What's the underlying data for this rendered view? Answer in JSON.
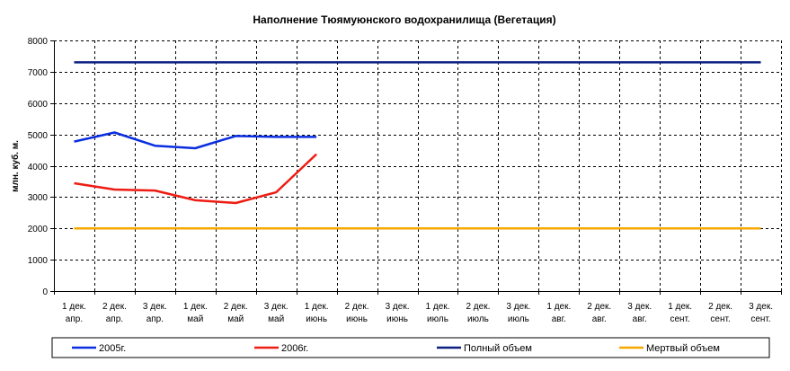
{
  "chart_data": {
    "type": "line",
    "title": "Наполнение Тюямуюнского водохранилища (Вегетация)",
    "xlabel": "",
    "ylabel": "млн. куб. м.",
    "ylim": [
      0,
      8000
    ],
    "yticks": [
      0,
      1000,
      2000,
      3000,
      4000,
      5000,
      6000,
      7000,
      8000
    ],
    "grid": true,
    "legend_position": "bottom",
    "categories": [
      [
        "1 дек.",
        "апр."
      ],
      [
        "2 дек.",
        "апр."
      ],
      [
        "3 дек.",
        "апр."
      ],
      [
        "1 дек.",
        "май"
      ],
      [
        "2 дек.",
        "май"
      ],
      [
        "3 дек.",
        "май"
      ],
      [
        "1 дек.",
        "июнь"
      ],
      [
        "2 дек.",
        "июнь"
      ],
      [
        "3 дек.",
        "июнь"
      ],
      [
        "1 дек.",
        "июль"
      ],
      [
        "2 дек.",
        "июль"
      ],
      [
        "3 дек.",
        "июль"
      ],
      [
        "1 дек.",
        "авг."
      ],
      [
        "2 дек.",
        "авг."
      ],
      [
        "3 дек.",
        "авг."
      ],
      [
        "1 дек.",
        "сент."
      ],
      [
        "2 дек.",
        "сент."
      ],
      [
        "3 дек.",
        "сент."
      ]
    ],
    "series": [
      {
        "name": "2005г.",
        "color": "#0a2ee0",
        "values": [
          4770,
          5060,
          4640,
          4560,
          4950,
          4920,
          4920,
          null,
          null,
          null,
          null,
          null,
          null,
          null,
          null,
          null,
          null,
          null
        ]
      },
      {
        "name": "2006г.",
        "color": "#ee1c12",
        "values": [
          3440,
          3240,
          3210,
          2900,
          2810,
          3150,
          4370,
          null,
          null,
          null,
          null,
          null,
          null,
          null,
          null,
          null,
          null,
          null
        ]
      },
      {
        "name": "Полный объем",
        "color": "#0b1f80",
        "values": [
          7300,
          7300,
          7300,
          7300,
          7300,
          7300,
          7300,
          7300,
          7300,
          7300,
          7300,
          7300,
          7300,
          7300,
          7300,
          7300,
          7300,
          7300
        ]
      },
      {
        "name": "Мертвый объем",
        "color": "#f7a800",
        "values": [
          2000,
          2000,
          2000,
          2000,
          2000,
          2000,
          2000,
          2000,
          2000,
          2000,
          2000,
          2000,
          2000,
          2000,
          2000,
          2000,
          2000,
          2000
        ]
      }
    ]
  }
}
